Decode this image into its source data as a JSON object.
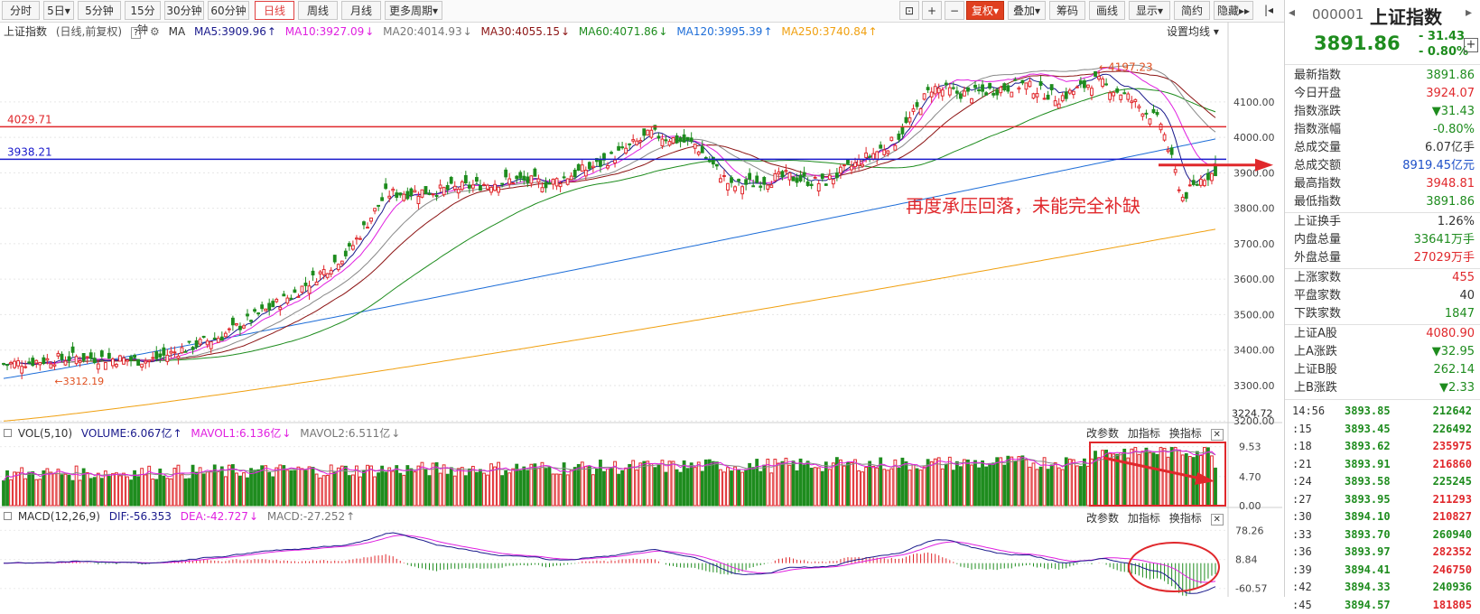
{
  "toolbar": {
    "periods": [
      "分时",
      "5日",
      "5分钟",
      "15分钟",
      "30分钟",
      "60分钟",
      "日线",
      "周线",
      "月线",
      "更多周期"
    ],
    "active_period": "日线",
    "right_items": [
      "复权",
      "叠加",
      "筹码",
      "画线",
      "显示",
      "简约",
      "隐藏"
    ]
  },
  "ma_bar": {
    "name": "上证指数",
    "mode": "(日线,前复权)",
    "ma_label": "MA",
    "ma5": "MA5:3909.96",
    "ma10": "MA10:3927.09",
    "ma20": "MA20:4014.93",
    "ma30": "MA30:4055.15",
    "ma60": "MA60:4071.86",
    "ma120": "MA120:3995.39",
    "ma250": "MA250:3740.84",
    "settings": "设置均线"
  },
  "colors": {
    "up": "#e0282c",
    "down": "#1e8c1e",
    "ma5": "#1a1a8c",
    "ma10": "#e020e0",
    "ma20": "#888888",
    "ma30": "#8c1414",
    "ma60": "#1e8c1e",
    "ma120": "#1e6ed8",
    "ma250": "#f0a010"
  },
  "annotations": {
    "red_level": "4029.71",
    "blue_level": "3938.21",
    "high_mark": "4197.23",
    "low_mark": "3312.19",
    "caption": "再度承压回落，未能完全补缺"
  },
  "vol_bar": {
    "title": "VOL(5,10)",
    "volume": "VOLUME:6.067亿",
    "mavol1": "MAVOL1:6.136亿",
    "mavol2": "MAVOL2:6.511亿"
  },
  "macd_bar": {
    "title": "MACD(12,26,9)",
    "dif": "DIF:-56.353",
    "dea": "DEA:-42.727",
    "macd": "MACD:-27.252"
  },
  "panel_tools": [
    "改参数",
    "加指标",
    "换指标"
  ],
  "chart_data": {
    "type": "candlestick",
    "main": {
      "ylim": [
        3170,
        4260
      ],
      "y_ticks": [
        3200,
        3300,
        3400,
        3500,
        3600,
        3700,
        3800,
        3900,
        4000,
        4100
      ],
      "current_label": "3224.72",
      "levels": [
        4029.71,
        3938.21
      ],
      "close_anchors": [
        [
          0,
          3360
        ],
        [
          20,
          3380
        ],
        [
          40,
          3370
        ],
        [
          60,
          3440
        ],
        [
          80,
          3560
        ],
        [
          95,
          3680
        ],
        [
          105,
          3840
        ],
        [
          120,
          3850
        ],
        [
          140,
          3880
        ],
        [
          150,
          3870
        ],
        [
          165,
          3930
        ],
        [
          178,
          4010
        ],
        [
          190,
          3980
        ],
        [
          200,
          3860
        ],
        [
          215,
          3890
        ],
        [
          225,
          3870
        ],
        [
          235,
          3930
        ],
        [
          245,
          3990
        ],
        [
          255,
          4140
        ],
        [
          265,
          4120
        ],
        [
          280,
          4150
        ],
        [
          290,
          4110
        ],
        [
          300,
          4160
        ],
        [
          308,
          4120
        ],
        [
          318,
          4040
        ],
        [
          324,
          3830
        ],
        [
          330,
          3890
        ],
        [
          333,
          3900
        ]
      ],
      "ma_end": {
        "ma5": 3909.96,
        "ma10": 3927.09,
        "ma20": 4014.93,
        "ma30": 4055.15,
        "ma60": 4071.86,
        "ma120": 3995.39,
        "ma250": 3740.84
      },
      "annotated_high": 4197.23,
      "annotated_low": 3312.19
    },
    "volume": {
      "ylim": [
        0,
        10.5
      ],
      "y_ticks": [
        0.0,
        4.7,
        9.53
      ],
      "unit": "亿",
      "last": 6.067
    },
    "macd": {
      "ylim": [
        -72,
        90
      ],
      "y_ticks": [
        -60.57,
        8.84,
        78.26
      ],
      "dif": -56.353,
      "dea": -42.727,
      "macd": -27.252
    }
  },
  "quote": {
    "code": "000001",
    "name": "上证指数",
    "price": "3891.86",
    "change": "- 31.43",
    "pct": "- 0.80%",
    "rows": [
      {
        "label": "最新指数",
        "value": "3891.86",
        "color": "#1e8c1e"
      },
      {
        "label": "今日开盘",
        "value": "3924.07",
        "color": "#e0282c"
      },
      {
        "label": "指数涨跌",
        "value": "▼31.43",
        "color": "#1e8c1e"
      },
      {
        "label": "指数涨幅",
        "value": "-0.80%",
        "color": "#1e8c1e"
      },
      {
        "label": "总成交量",
        "value": "6.07亿手",
        "color": "#333333"
      },
      {
        "label": "总成交额",
        "value": "8919.45亿元",
        "color": "#1e50c8"
      },
      {
        "label": "最高指数",
        "value": "3948.81",
        "color": "#e0282c"
      },
      {
        "label": "最低指数",
        "value": "3891.86",
        "color": "#1e8c1e"
      },
      {
        "label": "上证换手",
        "value": "1.26%",
        "color": "#333333"
      },
      {
        "label": "内盘总量",
        "value": "33641万手",
        "color": "#1e8c1e"
      },
      {
        "label": "外盘总量",
        "value": "27029万手",
        "color": "#e0282c"
      },
      {
        "label": "上涨家数",
        "value": "455",
        "color": "#e0282c"
      },
      {
        "label": "平盘家数",
        "value": "40",
        "color": "#333333"
      },
      {
        "label": "下跌家数",
        "value": "1847",
        "color": "#1e8c1e"
      },
      {
        "label": "上证A股",
        "value": "4080.90",
        "color": "#e0282c"
      },
      {
        "label": "上A涨跌",
        "value": "▼32.95",
        "color": "#1e8c1e"
      },
      {
        "label": "上证B股",
        "value": "262.14",
        "color": "#1e8c1e"
      },
      {
        "label": "上B涨跌",
        "value": "▼2.33",
        "color": "#1e8c1e"
      }
    ],
    "ticks": [
      {
        "time": "14:56",
        "price": "3893.85",
        "vol": "212642",
        "vc": "#1e8c1e"
      },
      {
        "time": ":15",
        "price": "3893.45",
        "vol": "226492",
        "vc": "#1e8c1e"
      },
      {
        "time": ":18",
        "price": "3893.62",
        "vol": "235975",
        "vc": "#e0282c"
      },
      {
        "time": ":21",
        "price": "3893.91",
        "vol": "216860",
        "vc": "#e0282c"
      },
      {
        "time": ":24",
        "price": "3893.58",
        "vol": "225245",
        "vc": "#1e8c1e"
      },
      {
        "time": ":27",
        "price": "3893.95",
        "vol": "211293",
        "vc": "#e0282c"
      },
      {
        "time": ":30",
        "price": "3894.10",
        "vol": "210827",
        "vc": "#e0282c"
      },
      {
        "time": ":33",
        "price": "3893.70",
        "vol": "260940",
        "vc": "#1e8c1e"
      },
      {
        "time": ":36",
        "price": "3893.97",
        "vol": "282352",
        "vc": "#e0282c"
      },
      {
        "time": ":39",
        "price": "3894.41",
        "vol": "246750",
        "vc": "#e0282c"
      },
      {
        "time": ":42",
        "price": "3894.33",
        "vol": "240936",
        "vc": "#1e8c1e"
      },
      {
        "time": ":45",
        "price": "3894.57",
        "vol": "181805",
        "vc": "#e0282c"
      }
    ]
  }
}
